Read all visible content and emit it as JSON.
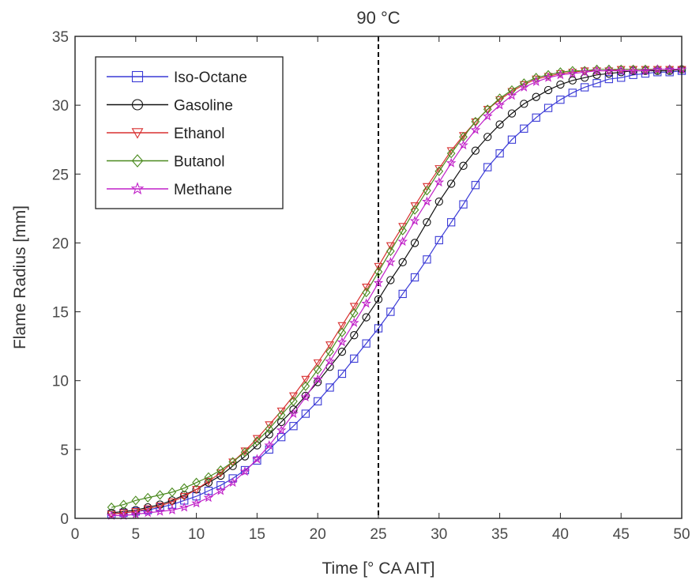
{
  "chart_data": {
    "type": "line",
    "title": "90 °C",
    "xlabel": "Time [° CA AIT]",
    "ylabel": "Flame Radius [mm]",
    "xlim": [
      0,
      50
    ],
    "ylim": [
      0,
      35
    ],
    "xticks": [
      0,
      5,
      10,
      15,
      20,
      25,
      30,
      35,
      40,
      45,
      50
    ],
    "yticks": [
      0,
      5,
      10,
      15,
      20,
      25,
      30,
      35
    ],
    "grid": false,
    "legend_position": "top-left",
    "reference_line": {
      "x": 25,
      "style": "dashed",
      "color": "#000000"
    },
    "series": [
      {
        "name": "Iso-Octane",
        "color": "#3a3ad6",
        "marker": "square",
        "x": [
          3,
          4,
          5,
          6,
          7,
          8,
          9,
          10,
          11,
          12,
          13,
          14,
          15,
          16,
          17,
          18,
          19,
          20,
          21,
          22,
          23,
          24,
          25,
          26,
          27,
          28,
          29,
          30,
          31,
          32,
          33,
          34,
          35,
          36,
          37,
          38,
          39,
          40,
          41,
          42,
          43,
          44,
          45,
          46,
          47,
          48,
          49,
          50
        ],
        "y": [
          0.3,
          0.4,
          0.5,
          0.6,
          0.8,
          1.0,
          1.3,
          1.6,
          2.0,
          2.4,
          2.9,
          3.5,
          4.2,
          5.0,
          5.9,
          6.7,
          7.6,
          8.5,
          9.5,
          10.5,
          11.6,
          12.7,
          13.8,
          15.0,
          16.3,
          17.5,
          18.8,
          20.2,
          21.5,
          22.8,
          24.2,
          25.5,
          26.5,
          27.5,
          28.3,
          29.1,
          29.8,
          30.4,
          30.9,
          31.3,
          31.6,
          31.9,
          32.0,
          32.2,
          32.3,
          32.4,
          32.4,
          32.5
        ]
      },
      {
        "name": "Gasoline",
        "color": "#111111",
        "marker": "circle",
        "x": [
          3,
          4,
          5,
          6,
          7,
          8,
          9,
          10,
          11,
          12,
          13,
          14,
          15,
          16,
          17,
          18,
          19,
          20,
          21,
          22,
          23,
          24,
          25,
          26,
          27,
          28,
          29,
          30,
          31,
          32,
          33,
          34,
          35,
          36,
          37,
          38,
          39,
          40,
          41,
          42,
          43,
          44,
          45,
          46,
          47,
          48,
          49,
          50
        ],
        "y": [
          0.4,
          0.5,
          0.6,
          0.8,
          1.0,
          1.3,
          1.7,
          2.1,
          2.6,
          3.1,
          3.8,
          4.5,
          5.3,
          6.1,
          7.0,
          7.9,
          8.9,
          9.9,
          11.0,
          12.1,
          13.3,
          14.6,
          15.9,
          17.3,
          18.6,
          20.0,
          21.5,
          23.0,
          24.3,
          25.6,
          26.7,
          27.7,
          28.6,
          29.4,
          30.1,
          30.6,
          31.1,
          31.5,
          31.8,
          32.0,
          32.2,
          32.3,
          32.4,
          32.5,
          32.5,
          32.5,
          32.5,
          32.6
        ]
      },
      {
        "name": "Ethanol",
        "color": "#d83030",
        "marker": "triangle-down",
        "x": [
          3,
          4,
          5,
          6,
          7,
          8,
          9,
          10,
          11,
          12,
          13,
          14,
          15,
          16,
          17,
          18,
          19,
          20,
          21,
          22,
          23,
          24,
          25,
          26,
          27,
          28,
          29,
          30,
          31,
          32,
          33,
          34,
          35,
          36,
          37,
          38,
          39,
          40,
          41,
          42,
          43,
          44,
          45,
          46,
          47,
          48,
          49,
          50
        ],
        "y": [
          0.3,
          0.4,
          0.5,
          0.7,
          0.9,
          1.2,
          1.6,
          2.1,
          2.7,
          3.3,
          4.1,
          4.9,
          5.8,
          6.8,
          7.8,
          8.9,
          10.1,
          11.3,
          12.6,
          14.0,
          15.4,
          16.8,
          18.3,
          19.8,
          21.2,
          22.7,
          24.1,
          25.4,
          26.7,
          27.8,
          28.8,
          29.7,
          30.4,
          31.0,
          31.5,
          31.9,
          32.1,
          32.3,
          32.4,
          32.5,
          32.5,
          32.5,
          32.6,
          32.6,
          32.6,
          32.6,
          32.6,
          32.6
        ]
      },
      {
        "name": "Butanol",
        "color": "#4a8a1e",
        "marker": "diamond",
        "x": [
          3,
          4,
          5,
          6,
          7,
          8,
          9,
          10,
          11,
          12,
          13,
          14,
          15,
          16,
          17,
          18,
          19,
          20,
          21,
          22,
          23,
          24,
          25,
          26,
          27,
          28,
          29,
          30,
          31,
          32,
          33,
          34,
          35,
          36,
          37,
          38,
          39,
          40,
          41,
          42,
          43,
          44,
          45,
          46,
          47,
          48,
          49,
          50
        ],
        "y": [
          0.8,
          1.0,
          1.3,
          1.5,
          1.7,
          1.9,
          2.2,
          2.6,
          3.0,
          3.5,
          4.1,
          4.8,
          5.6,
          6.5,
          7.5,
          8.5,
          9.6,
          10.8,
          12.1,
          13.5,
          14.9,
          16.4,
          17.9,
          19.4,
          20.9,
          22.4,
          23.8,
          25.2,
          26.5,
          27.7,
          28.8,
          29.7,
          30.5,
          31.1,
          31.6,
          32.0,
          32.2,
          32.4,
          32.5,
          32.5,
          32.6,
          32.6,
          32.6,
          32.6,
          32.6,
          32.6,
          32.6,
          32.6
        ]
      },
      {
        "name": "Methane",
        "color": "#c020c8",
        "marker": "star",
        "x": [
          3,
          4,
          5,
          6,
          7,
          8,
          9,
          10,
          11,
          12,
          13,
          14,
          15,
          16,
          17,
          18,
          19,
          20,
          21,
          22,
          23,
          24,
          25,
          26,
          27,
          28,
          29,
          30,
          31,
          32,
          33,
          34,
          35,
          36,
          37,
          38,
          39,
          40,
          41,
          42,
          43,
          44,
          45,
          46,
          47,
          48,
          49,
          50
        ],
        "y": [
          0.2,
          0.2,
          0.3,
          0.4,
          0.5,
          0.6,
          0.8,
          1.1,
          1.5,
          2.0,
          2.6,
          3.4,
          4.3,
          5.3,
          6.4,
          7.6,
          8.8,
          10.1,
          11.4,
          12.8,
          14.2,
          15.6,
          17.1,
          18.6,
          20.1,
          21.6,
          23.0,
          24.4,
          25.8,
          27.1,
          28.2,
          29.2,
          30.0,
          30.7,
          31.3,
          31.7,
          32.0,
          32.2,
          32.3,
          32.4,
          32.5,
          32.5,
          32.5,
          32.5,
          32.5,
          32.6,
          32.6,
          32.6
        ]
      }
    ]
  }
}
